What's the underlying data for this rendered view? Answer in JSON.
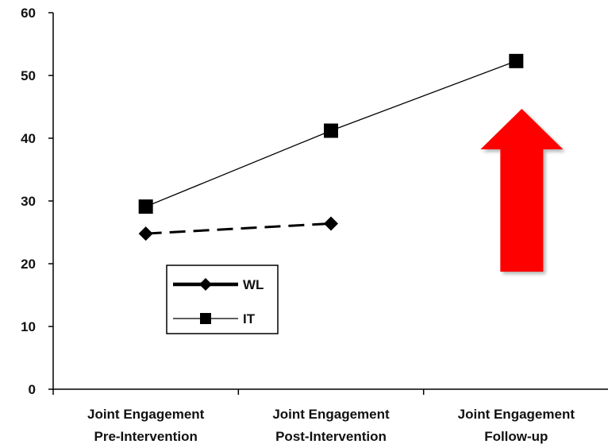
{
  "chart_data": {
    "type": "line",
    "categories": [
      [
        "Joint Engagement",
        "Pre-Intervention"
      ],
      [
        "Joint Engagement",
        "Post-Intervention"
      ],
      [
        "Joint Engagement",
        "Follow-up"
      ]
    ],
    "yticks": [
      0,
      10,
      20,
      30,
      40,
      50,
      60
    ],
    "ylim": [
      0,
      60
    ],
    "grid": false,
    "legend": {
      "placement": "bottom-left-inside",
      "entries": [
        {
          "label": "WL",
          "series": 0
        },
        {
          "label": "IT",
          "series": 1
        }
      ]
    },
    "series": [
      {
        "name": "WL",
        "values": [
          24.8,
          26.4,
          null
        ],
        "color": "#000000",
        "line_style": "dashed",
        "marker": "diamond"
      },
      {
        "name": "IT",
        "values": [
          29.1,
          41.2,
          52.3
        ],
        "color": "#000000",
        "line_style": "solid",
        "marker": "square"
      }
    ],
    "annotation": {
      "type": "arrow-up",
      "color": "#ff0000",
      "category_index": 2
    }
  }
}
